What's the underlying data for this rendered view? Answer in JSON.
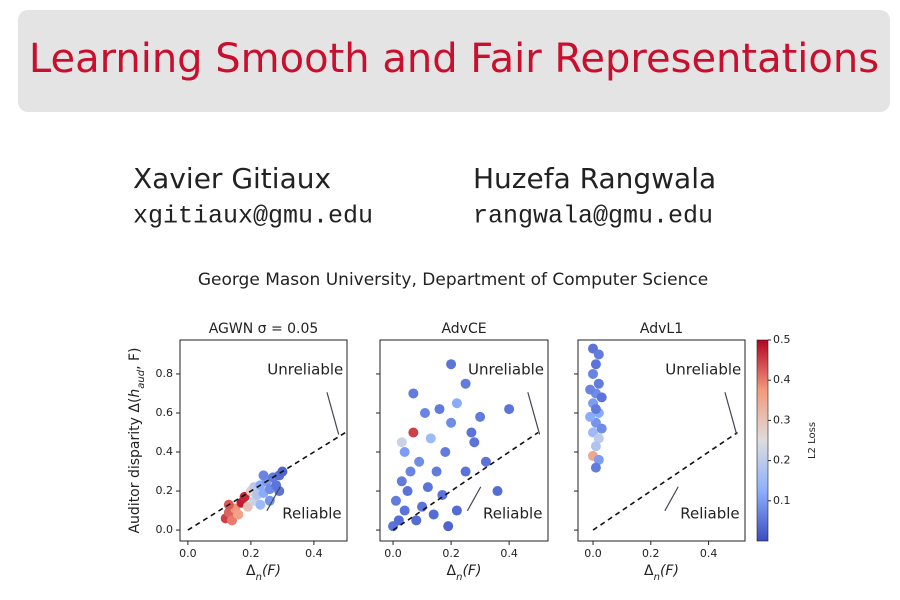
{
  "header": {
    "title": "Learning Smooth and Fair Representations"
  },
  "authors": [
    {
      "name": "Xavier Gitiaux",
      "email": "xgitiaux@gmu.edu"
    },
    {
      "name": "Huzefa Rangwala",
      "email": "rangwala@gmu.edu"
    }
  ],
  "affiliation": "George Mason University, Department of Computer Science",
  "colorbar": {
    "label": "L2 Loss",
    "clim": [
      0,
      0.5
    ],
    "ticks": [
      0.1,
      0.2,
      0.3,
      0.4,
      0.5
    ],
    "colormap": [
      "#3b4cc0",
      "#8db0fe",
      "#dddddd",
      "#f49a7b",
      "#b40426"
    ]
  },
  "chart_data": [
    {
      "type": "scatter",
      "title": "AGWN σ = 0.05",
      "x_label": [
        "Δ",
        "n",
        "(F)"
      ],
      "y_label": [
        "Auditor disparity Δ(",
        "h",
        "aud",
        ", F)"
      ],
      "xlim": [
        -0.025,
        0.505
      ],
      "ylim": [
        -0.056,
        0.974
      ],
      "xticks": [
        {
          "value": 0,
          "label": "0.0"
        },
        0.2,
        0.4
      ],
      "yticks": [
        {
          "value": 0,
          "label": "0.0"
        },
        0.2,
        0.4,
        0.6,
        0.8
      ],
      "annotations": [
        "Unreliable",
        "Reliable"
      ],
      "reference_line": {
        "x": [
          0,
          0.5
        ],
        "y": [
          0,
          0.5
        ]
      },
      "x": [
        0.12,
        0.13,
        0.14,
        0.15,
        0.16,
        0.17,
        0.18,
        0.19,
        0.2,
        0.21,
        0.21,
        0.22,
        0.23,
        0.23,
        0.24,
        0.25,
        0.26,
        0.26,
        0.27,
        0.28,
        0.29,
        0.3,
        0.29,
        0.24,
        0.13
      ],
      "y": [
        0.06,
        0.09,
        0.05,
        0.11,
        0.08,
        0.14,
        0.17,
        0.12,
        0.2,
        0.15,
        0.22,
        0.18,
        0.13,
        0.23,
        0.19,
        0.25,
        0.21,
        0.15,
        0.27,
        0.23,
        0.28,
        0.3,
        0.2,
        0.28,
        0.13
      ],
      "color_values": [
        0.45,
        0.42,
        0.4,
        0.38,
        0.36,
        0.48,
        0.47,
        0.3,
        0.28,
        0.22,
        0.2,
        0.18,
        0.15,
        0.12,
        0.12,
        0.1,
        0.08,
        0.09,
        0.06,
        0.05,
        0.04,
        0.03,
        0.05,
        0.07,
        0.43
      ]
    },
    {
      "type": "scatter",
      "title": "AdvCE",
      "x_label": [
        "Δ",
        "n",
        "(F)"
      ],
      "xlim": [
        -0.045,
        0.534
      ],
      "ylim": [
        -0.056,
        0.974
      ],
      "xticks": [
        {
          "value": 0,
          "label": "0.0"
        },
        0.2,
        0.4
      ],
      "annotations": [
        "Unreliable",
        "Reliable"
      ],
      "reference_line": {
        "x": [
          0,
          0.5
        ],
        "y": [
          0,
          0.5
        ]
      },
      "x": [
        0.0,
        0.02,
        0.04,
        0.01,
        0.05,
        0.08,
        0.1,
        0.03,
        0.06,
        0.12,
        0.15,
        0.09,
        0.04,
        0.03,
        0.07,
        0.13,
        0.18,
        0.2,
        0.11,
        0.16,
        0.22,
        0.2,
        0.25,
        0.28,
        0.3,
        0.4,
        0.36,
        0.25,
        0.22,
        0.14,
        0.32,
        0.17,
        0.07,
        0.19,
        0.27
      ],
      "y": [
        0.02,
        0.05,
        0.1,
        0.15,
        0.2,
        0.05,
        0.12,
        0.25,
        0.3,
        0.22,
        0.3,
        0.35,
        0.4,
        0.45,
        0.5,
        0.47,
        0.4,
        0.55,
        0.6,
        0.62,
        0.65,
        0.85,
        0.75,
        0.45,
        0.58,
        0.62,
        0.2,
        0.3,
        0.1,
        0.08,
        0.35,
        0.18,
        0.7,
        0.02,
        0.5
      ],
      "color_values": [
        0.05,
        0.04,
        0.05,
        0.06,
        0.05,
        0.04,
        0.05,
        0.06,
        0.07,
        0.05,
        0.06,
        0.08,
        0.1,
        0.22,
        0.45,
        0.15,
        0.06,
        0.08,
        0.07,
        0.06,
        0.12,
        0.05,
        0.06,
        0.05,
        0.06,
        0.05,
        0.04,
        0.05,
        0.04,
        0.04,
        0.05,
        0.05,
        0.06,
        0.03,
        0.05
      ]
    },
    {
      "type": "scatter",
      "title": "AdvL1",
      "x_label": [
        "Δ",
        "n",
        "(F)"
      ],
      "xlim": [
        -0.052,
        0.526
      ],
      "ylim": [
        -0.056,
        0.974
      ],
      "xticks": [
        {
          "value": 0,
          "label": "0.0"
        },
        0.2,
        0.4
      ],
      "annotations": [
        "Unreliable",
        "Reliable"
      ],
      "reference_line": {
        "x": [
          0,
          0.5
        ],
        "y": [
          0,
          0.5
        ]
      },
      "x": [
        0.0,
        0.02,
        0.01,
        0.0,
        0.02,
        0.01,
        0.0,
        0.02,
        0.01,
        0.0,
        0.02,
        0.01,
        0.0,
        0.02,
        0.01,
        0.03,
        -0.01,
        0.03,
        -0.01,
        0.01
      ],
      "y": [
        0.93,
        0.9,
        0.85,
        0.8,
        0.75,
        0.7,
        0.65,
        0.6,
        0.55,
        0.5,
        0.47,
        0.43,
        0.38,
        0.36,
        0.32,
        0.68,
        0.72,
        0.52,
        0.58,
        0.62
      ],
      "color_values": [
        0.05,
        0.06,
        0.05,
        0.07,
        0.06,
        0.08,
        0.1,
        0.12,
        0.09,
        0.15,
        0.2,
        0.18,
        0.35,
        0.1,
        0.06,
        0.05,
        0.07,
        0.08,
        0.12,
        0.06
      ]
    }
  ]
}
